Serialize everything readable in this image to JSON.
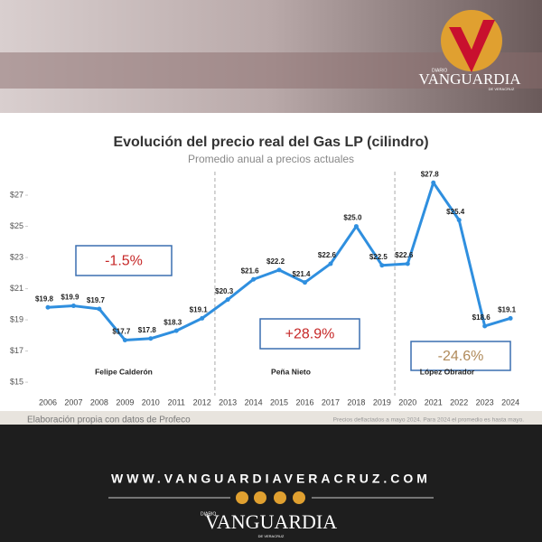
{
  "chart_data": {
    "type": "line",
    "title": "Evolución del precio real del Gas LP (cilindro)",
    "subtitle": "Promedio anual a precios actuales",
    "categories": [
      "2006",
      "2007",
      "2008",
      "2009",
      "2010",
      "2011",
      "2012",
      "2013",
      "2014",
      "2015",
      "2016",
      "2017",
      "2018",
      "2019",
      "2020",
      "2021",
      "2022",
      "2023",
      "2024"
    ],
    "values": [
      19.8,
      19.9,
      19.7,
      17.7,
      17.8,
      18.3,
      19.1,
      20.3,
      21.6,
      22.2,
      21.4,
      22.6,
      25.0,
      22.5,
      22.6,
      27.8,
      25.4,
      18.6,
      19.1
    ],
    "value_labels": [
      "$19.8",
      "$19.9",
      "$19.7",
      "$17.7",
      "$17.8",
      "$18.3",
      "$19.1",
      "$20.3",
      "$21.6",
      "$22.2",
      "$21.4",
      "$22.6",
      "$25.0",
      "$22.5",
      "$22.6",
      "$27.8",
      "$25.4",
      "$18.6",
      "$19.1"
    ],
    "color": "#2f8fdf",
    "ylim": [
      14.6,
      28.8
    ],
    "yticks": [
      {
        "value": 15,
        "label": "$15"
      },
      {
        "value": 17,
        "label": "$17"
      },
      {
        "value": 19,
        "label": "$19"
      },
      {
        "value": 21,
        "label": "$21"
      },
      {
        "value": 23,
        "label": "$23"
      },
      {
        "value": 25,
        "label": "$25"
      },
      {
        "value": 27,
        "label": "$27"
      }
    ],
    "periods": [
      {
        "name": "Felipe Calderón",
        "change": "-1.5%"
      },
      {
        "name": "Peña Nieto",
        "change": "+28.9%"
      },
      {
        "name": "López Obrador",
        "change": "-24.6%"
      }
    ],
    "source": "Elaboración propia con datos de Profeco",
    "note": "Precios deflactados a mayo 2024. Para 2024 el promedio es hasta mayo."
  },
  "brand": {
    "pre": "DIARIO",
    "name": "VANGUARDIA",
    "post": "DE VERACRUZ",
    "url": "WWW.VANGUARDIAVERACRUZ.COM"
  }
}
